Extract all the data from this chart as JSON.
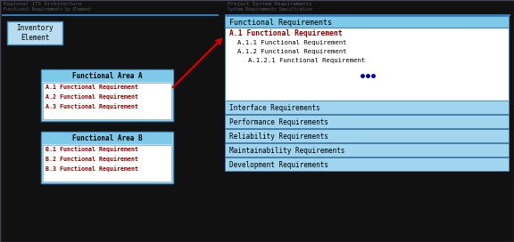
{
  "bg_color": "#111111",
  "title_left_line1": "Regional ITS Architecture",
  "title_left_line2": "Functional Requirements by Element",
  "title_right_line1": "Project System Requirements",
  "title_right_line2": "System Requirements Specification",
  "inventory_label": "Inventory\nElement",
  "func_area_a_title": "Functional Area A",
  "func_area_a_items": [
    "A.1 Functional Requirement",
    "A.2 Functional Requirement",
    "A.3 Functional Requirement"
  ],
  "func_area_b_title": "Functional Area B",
  "func_area_b_items": [
    "B.1 Functional Requirement",
    "B.2 Functional Requirement",
    "B.3 Functional Requirement"
  ],
  "func_req_header": "Functional Requirements",
  "func_req_a1": "A.1 Functional Requirement",
  "func_req_a11": "A.1.1 Functional Requirement",
  "func_req_a12": "A.1.2 Functional Requirement",
  "func_req_a121": "A.1.2.1 Functional Requirement",
  "other_reqs": [
    "Interface Requirements",
    "Performance Requirements",
    "Reliability Requirements",
    "Maintainability Requirements",
    "Development Requirements"
  ],
  "light_blue_header": "#7ec8e8",
  "light_blue_bar": "#a0d4ef",
  "light_blue_box": "#b8ddf0",
  "white": "#ffffff",
  "dark_red": "#880000",
  "black": "#000000",
  "dot_color": "#0000aa",
  "arrow_color": "#cc0000",
  "border_color": "#4488bb",
  "title_color": "#555566",
  "outer_border": "#444455"
}
